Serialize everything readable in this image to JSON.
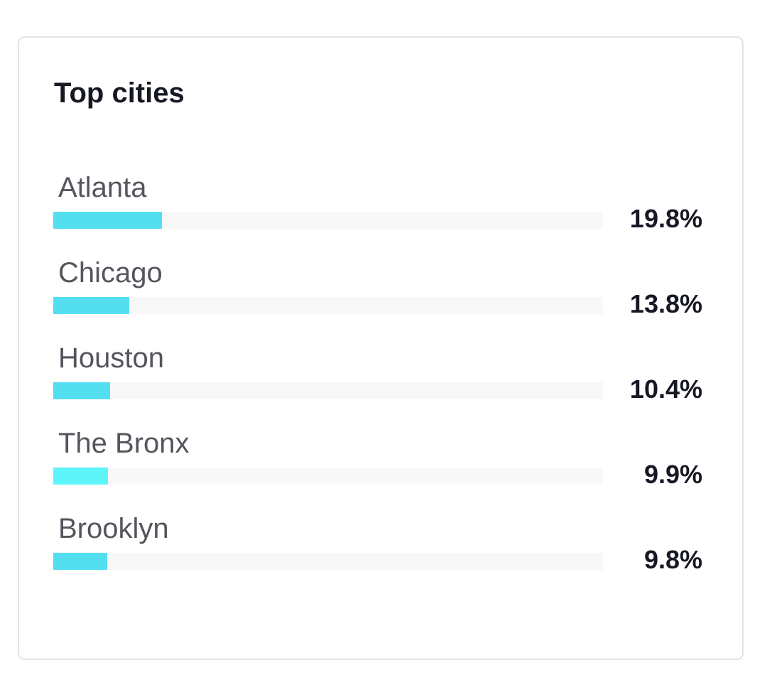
{
  "card": {
    "title": "Top cities"
  },
  "cities": [
    {
      "name": "Atlanta",
      "percent_label": "19.8%",
      "percent": 19.8,
      "bar_color": "#53dfef"
    },
    {
      "name": "Chicago",
      "percent_label": "13.8%",
      "percent": 13.8,
      "bar_color": "#53dfef"
    },
    {
      "name": "Houston",
      "percent_label": "10.4%",
      "percent": 10.4,
      "bar_color": "#53dfef"
    },
    {
      "name": "The Bronx",
      "percent_label": "9.9%",
      "percent": 9.9,
      "bar_color": "#5ef5fa"
    },
    {
      "name": "Brooklyn",
      "percent_label": "9.8%",
      "percent": 9.8,
      "bar_color": "#53dfef"
    }
  ],
  "colors": {
    "track": "#f8f8f8",
    "title_text": "#161823",
    "label_text": "#54565e",
    "card_border": "#e3e3e4"
  }
}
